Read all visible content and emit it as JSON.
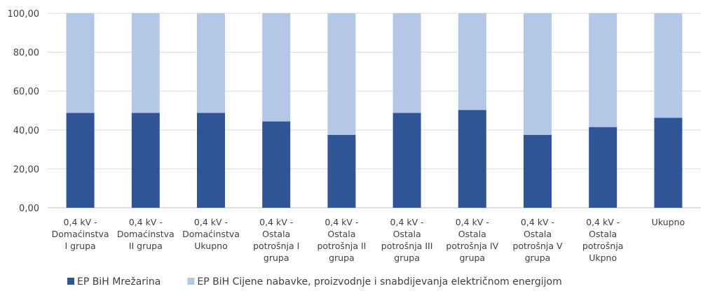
{
  "chart_data": {
    "type": "bar",
    "stacked": true,
    "percent": true,
    "categories": [
      [
        "0,4 kV -",
        "Domaćinstva",
        "I grupa"
      ],
      [
        "0,4 kV -",
        "Domaćinstva",
        "II grupa"
      ],
      [
        "0,4 kV -",
        "Domaćinstva",
        "Ukupno"
      ],
      [
        "0,4 kV -",
        "Ostala",
        "potrošnja I",
        "grupa"
      ],
      [
        "0,4 kV -",
        "Ostala",
        "potrošnja II",
        "grupa"
      ],
      [
        "0,4 kV -",
        "Ostala",
        "potrošnja III",
        "grupa"
      ],
      [
        "0,4 kV -",
        "Ostala",
        "potrošnja IV",
        "grupa"
      ],
      [
        "0,4 kV -",
        "Ostala",
        "potrošnja V",
        "grupa"
      ],
      [
        "0,4 kV -",
        "Ostala",
        "potrošnja",
        "Ukpno"
      ],
      [
        "Ukupno"
      ]
    ],
    "series": [
      {
        "name": "EP BiH Mrežarina",
        "color": "#2f5597",
        "values": [
          48.8,
          48.8,
          48.8,
          44.4,
          37.5,
          48.8,
          50.3,
          37.5,
          41.5,
          46.3
        ]
      },
      {
        "name": "EP BiH Cijene nabavke, proizvodnje i snabdijevanja električnom energijom",
        "color": "#b4c7e7",
        "values": [
          51.2,
          51.2,
          51.2,
          55.6,
          62.5,
          51.2,
          49.7,
          62.5,
          58.5,
          53.7
        ]
      }
    ],
    "yticks": [
      "0,00",
      "20,00",
      "40,00",
      "60,00",
      "80,00",
      "100,00"
    ],
    "ylim": [
      0,
      100
    ],
    "grid": true,
    "legend": "bottom-left",
    "title": "",
    "xlabel": "",
    "ylabel": ""
  }
}
